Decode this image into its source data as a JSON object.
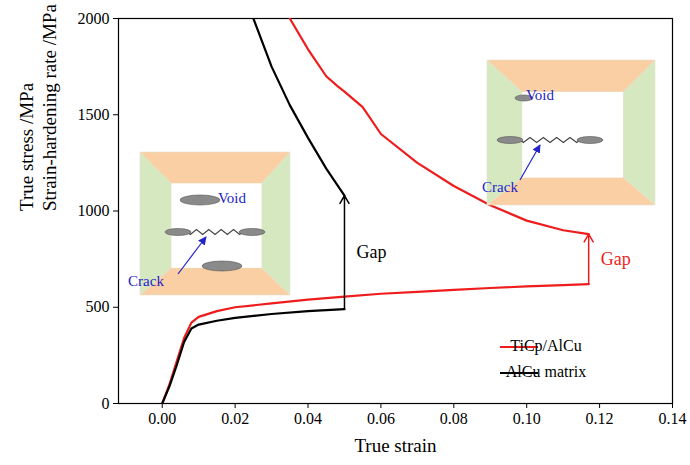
{
  "chart_data": {
    "type": "line",
    "xlabel": "True strain",
    "ylabel": [
      "True stress /MPa",
      "Strain-hardening rate /MPa"
    ],
    "xlim": [
      -0.012,
      0.14
    ],
    "xticks": [
      {
        "value": 0,
        "label": "0.00"
      },
      {
        "value": 0.02,
        "label": "0.02"
      },
      {
        "value": 0.04,
        "label": "0.04"
      },
      {
        "value": 0.06,
        "label": "0.06"
      },
      {
        "value": 0.08,
        "label": "0.08"
      },
      {
        "value": 0.1,
        "label": "0.10"
      },
      {
        "value": 0.12,
        "label": "0.12"
      },
      {
        "value": 0.14,
        "label": "0.14"
      }
    ],
    "ylim": [
      0,
      2000
    ],
    "yticks": [
      0,
      500,
      1000,
      1500,
      2000
    ],
    "legend": "lower right",
    "series": [
      {
        "name": "TiCp/AlCu",
        "color": "#ee1c1c",
        "gap_label": "Gap",
        "curves": [
          {
            "x": [
              0,
              0.002,
              0.004,
              0.006,
              0.008,
              0.01,
              0.015,
              0.02,
              0.03,
              0.04,
              0.05,
              0.06,
              0.07,
              0.08,
              0.09,
              0.1,
              0.11,
              0.117
            ],
            "values": [
              0,
              100,
              220,
              340,
              420,
              450,
              480,
              500,
              520,
              540,
              555,
              570,
              580,
              590,
              600,
              608,
              615,
              620
            ]
          },
          {
            "x": [
              0.035,
              0.04,
              0.045,
              0.048,
              0.05,
              0.055,
              0.06,
              0.07,
              0.08,
              0.09,
              0.1,
              0.11,
              0.117
            ],
            "values": [
              2000,
              1840,
              1700,
              1650,
              1620,
              1540,
              1400,
              1250,
              1130,
              1030,
              950,
              900,
              880
            ]
          }
        ]
      },
      {
        "name": "AlCu matrix",
        "color": "#000000",
        "gap_label": "Gap",
        "curves": [
          {
            "x": [
              0,
              0.002,
              0.004,
              0.006,
              0.008,
              0.01,
              0.015,
              0.02,
              0.03,
              0.04,
              0.05
            ],
            "values": [
              0,
              90,
              200,
              320,
              390,
              410,
              430,
              445,
              465,
              480,
              490
            ]
          },
          {
            "x": [
              0.025,
              0.03,
              0.035,
              0.04,
              0.045,
              0.05
            ],
            "values": [
              2000,
              1750,
              1550,
              1380,
              1220,
              1080
            ]
          }
        ]
      }
    ],
    "insets": [
      {
        "void": "Void",
        "crack": "Crack"
      },
      {
        "void": "Void",
        "crack": "Crack"
      }
    ]
  }
}
